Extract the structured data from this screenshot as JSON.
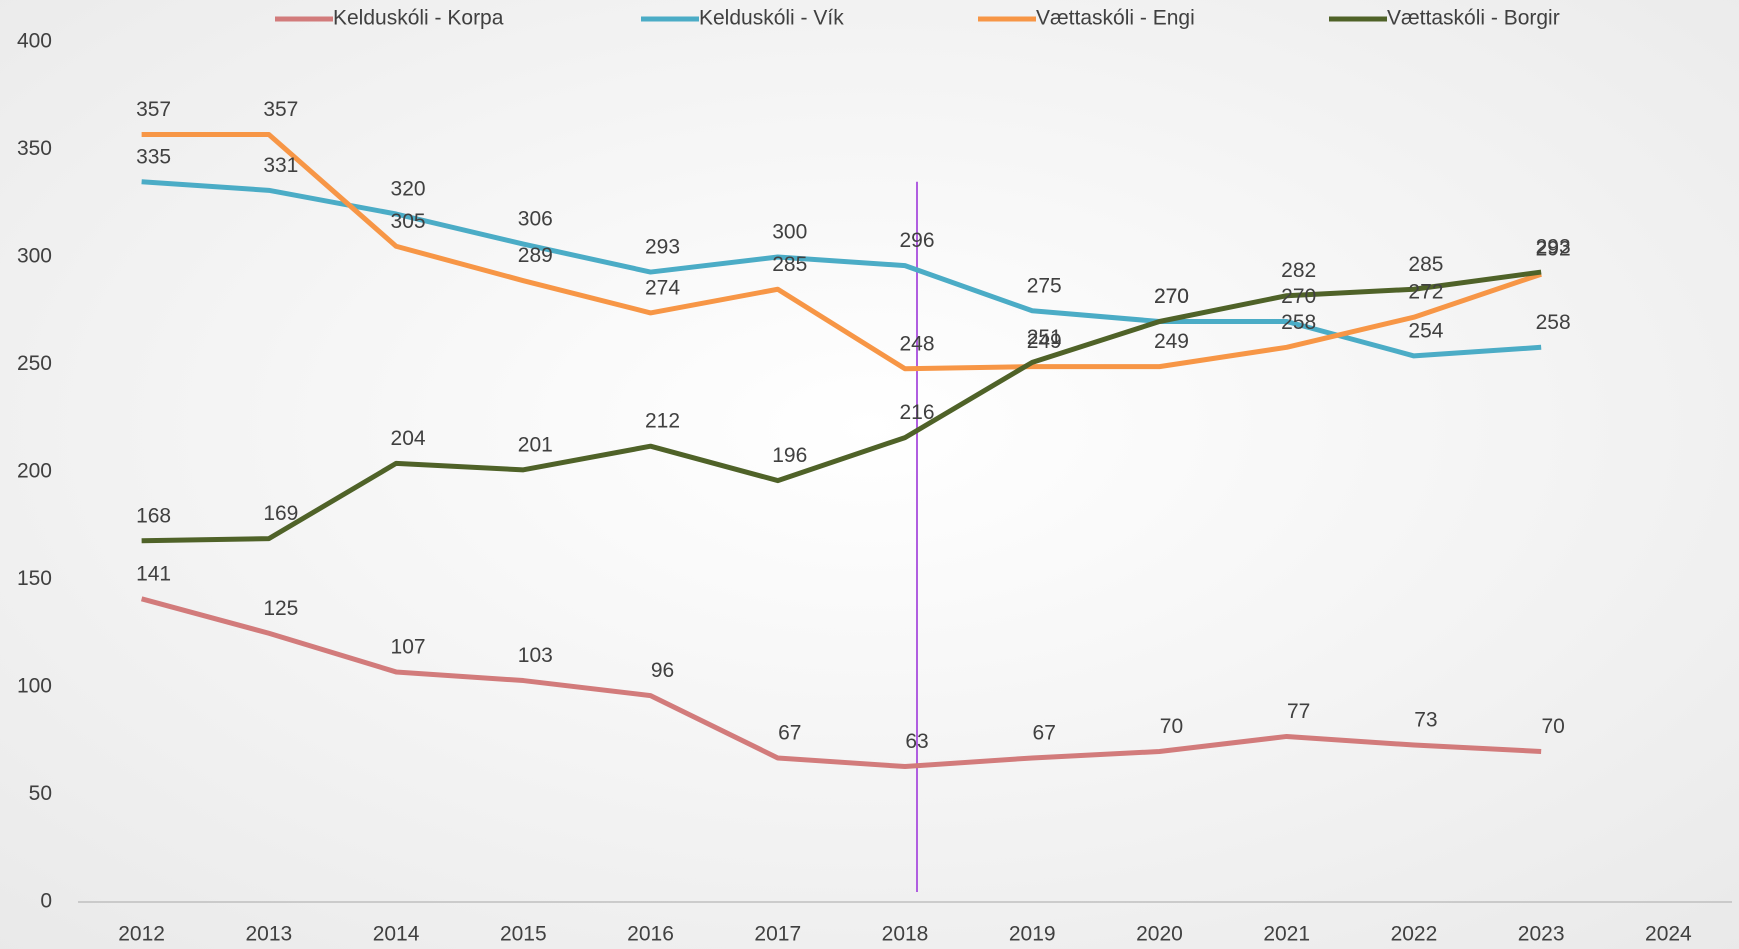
{
  "chart_data": {
    "type": "line",
    "categories": [
      "2012",
      "2013",
      "2014",
      "2015",
      "2016",
      "2017",
      "2018",
      "2019",
      "2020",
      "2021",
      "2022",
      "2023",
      "2024"
    ],
    "series": [
      {
        "name": "Kelduskóli - Korpa",
        "color": "#d27b7b",
        "values": [
          141,
          125,
          107,
          103,
          96,
          67,
          63,
          67,
          70,
          77,
          73,
          70,
          null
        ]
      },
      {
        "name": "Kelduskóli - Vík",
        "color": "#4bacc6",
        "values": [
          335,
          331,
          320,
          306,
          293,
          300,
          296,
          275,
          270,
          270,
          254,
          258,
          null
        ]
      },
      {
        "name": "Vættaskóli - Engi",
        "color": "#f79646",
        "values": [
          357,
          357,
          305,
          289,
          274,
          285,
          248,
          249,
          249,
          258,
          272,
          292,
          null
        ]
      },
      {
        "name": "Vættaskóli - Borgir",
        "color": "#4f6228",
        "values": [
          168,
          169,
          204,
          201,
          212,
          196,
          216,
          251,
          270,
          282,
          285,
          293,
          null
        ]
      }
    ],
    "ylim": [
      0,
      400
    ],
    "yticks": [
      0,
      50,
      100,
      150,
      200,
      250,
      300,
      350,
      400
    ],
    "grid": false,
    "legend": "top"
  }
}
